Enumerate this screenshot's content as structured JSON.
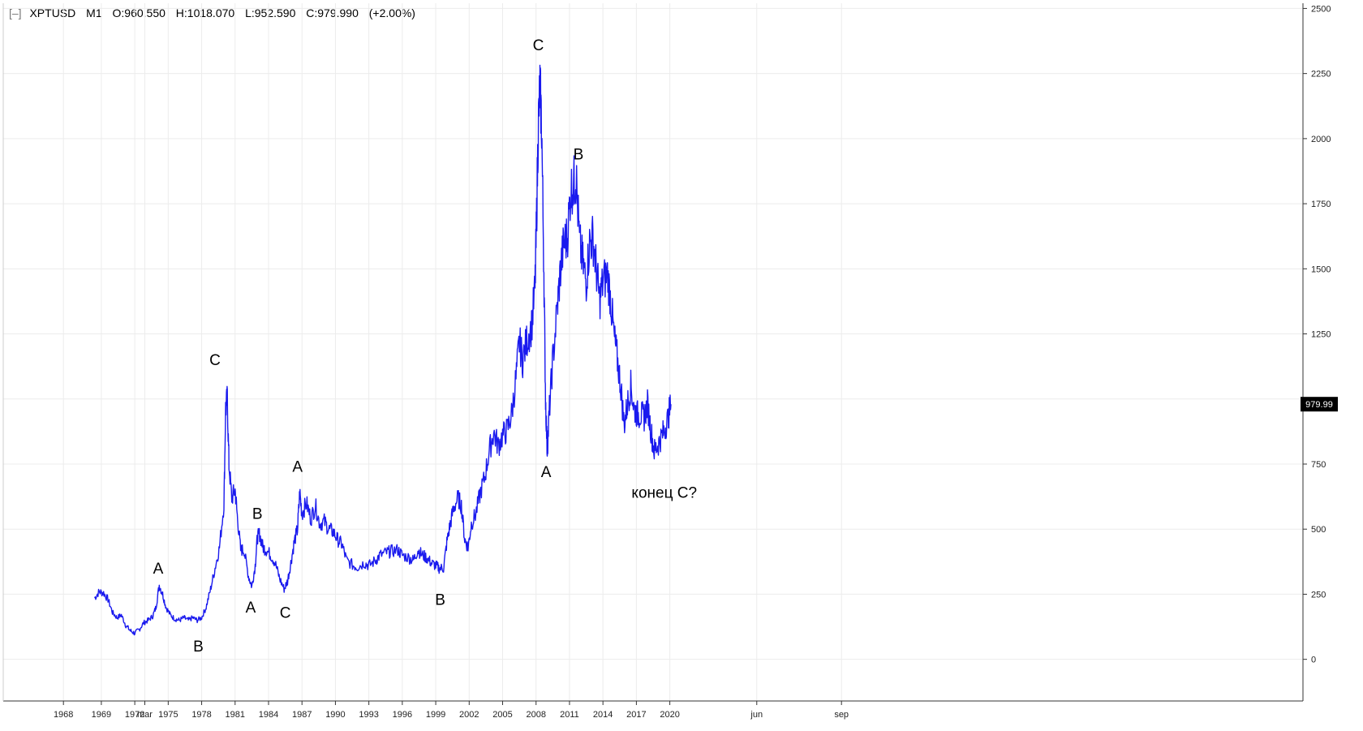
{
  "header": {
    "collapse_icon": "[–]",
    "symbol": "XPTUSD",
    "timeframe": "M1",
    "open": "O:960.550",
    "high": "H:1018.070",
    "low": "L:952.590",
    "close": "C:979.990",
    "change": "(+2.00%)"
  },
  "colors": {
    "series": "#1a1aee",
    "grid": "#ececec",
    "axis": "#333333",
    "price_tag_bg": "#000000"
  },
  "chart_data": {
    "type": "line",
    "ylim": [
      -160,
      2520
    ],
    "y_ticks": [
      0,
      250,
      500,
      750,
      1000,
      1250,
      1500,
      1750,
      2000,
      2250,
      2500
    ],
    "y_tick_labels": [
      "0",
      "250",
      "500",
      "750",
      "",
      "1250",
      "1500",
      "1750",
      "2000",
      "2250",
      "2500"
    ],
    "xlim": [
      1960.2,
      2076.8
    ],
    "x_ticks": [
      {
        "t": 1965.6,
        "label": "1968"
      },
      {
        "t": 1972.9,
        "label": "mar"
      },
      {
        "t": 1969.0,
        "label": "1969"
      },
      {
        "t": 1972.0,
        "label": "1972"
      },
      {
        "t": 1975.0,
        "label": "1975"
      },
      {
        "t": 1978.0,
        "label": "1978"
      },
      {
        "t": 1981.0,
        "label": "1981"
      },
      {
        "t": 1984.0,
        "label": "1984"
      },
      {
        "t": 1987.0,
        "label": "1987"
      },
      {
        "t": 1990.0,
        "label": "1990"
      },
      {
        "t": 1993.0,
        "label": "1993"
      },
      {
        "t": 1996.0,
        "label": "1996"
      },
      {
        "t": 1999.0,
        "label": "1999"
      },
      {
        "t": 2002.0,
        "label": "2002"
      },
      {
        "t": 2005.0,
        "label": "2005"
      },
      {
        "t": 2008.0,
        "label": "2008"
      },
      {
        "t": 2011.0,
        "label": "2011"
      },
      {
        "t": 2014.0,
        "label": "2014"
      },
      {
        "t": 2017.0,
        "label": "2017"
      },
      {
        "t": 2020.0,
        "label": "2020"
      },
      {
        "t": 2027.8,
        "label": "jun"
      },
      {
        "t": 2035.4,
        "label": "sep"
      }
    ],
    "series": [
      {
        "points": [
          [
            1968.4,
            235
          ],
          [
            1968.8,
            260
          ],
          [
            1969.2,
            255
          ],
          [
            1969.6,
            230
          ],
          [
            1970.0,
            180
          ],
          [
            1970.4,
            160
          ],
          [
            1970.8,
            170
          ],
          [
            1971.2,
            130
          ],
          [
            1971.6,
            110
          ],
          [
            1972.0,
            100
          ],
          [
            1972.4,
            115
          ],
          [
            1972.8,
            140
          ],
          [
            1973.2,
            150
          ],
          [
            1973.6,
            165
          ],
          [
            1973.9,
            200
          ],
          [
            1974.2,
            285
          ],
          [
            1974.5,
            250
          ],
          [
            1974.8,
            200
          ],
          [
            1975.2,
            170
          ],
          [
            1975.6,
            155
          ],
          [
            1976.0,
            150
          ],
          [
            1976.4,
            160
          ],
          [
            1976.8,
            150
          ],
          [
            1977.2,
            160
          ],
          [
            1977.6,
            150
          ],
          [
            1978.0,
            160
          ],
          [
            1978.4,
            200
          ],
          [
            1978.8,
            270
          ],
          [
            1979.2,
            350
          ],
          [
            1979.6,
            430
          ],
          [
            1980.0,
            600
          ],
          [
            1980.15,
            960
          ],
          [
            1980.3,
            1000
          ],
          [
            1980.45,
            750
          ],
          [
            1980.7,
            620
          ],
          [
            1981.0,
            650
          ],
          [
            1981.2,
            550
          ],
          [
            1981.5,
            420
          ],
          [
            1981.8,
            420
          ],
          [
            1982.2,
            320
          ],
          [
            1982.5,
            280
          ],
          [
            1982.8,
            360
          ],
          [
            1983.0,
            470
          ],
          [
            1983.2,
            480
          ],
          [
            1983.5,
            430
          ],
          [
            1983.8,
            420
          ],
          [
            1984.2,
            400
          ],
          [
            1984.6,
            370
          ],
          [
            1985.0,
            310
          ],
          [
            1985.4,
            270
          ],
          [
            1985.7,
            300
          ],
          [
            1986.0,
            370
          ],
          [
            1986.3,
            450
          ],
          [
            1986.6,
            500
          ],
          [
            1986.8,
            640
          ],
          [
            1987.0,
            560
          ],
          [
            1987.4,
            600
          ],
          [
            1987.8,
            540
          ],
          [
            1988.2,
            590
          ],
          [
            1988.6,
            520
          ],
          [
            1989.0,
            530
          ],
          [
            1989.4,
            500
          ],
          [
            1989.8,
            490
          ],
          [
            1990.2,
            460
          ],
          [
            1990.6,
            440
          ],
          [
            1991.0,
            380
          ],
          [
            1991.6,
            360
          ],
          [
            1992.0,
            355
          ],
          [
            1992.6,
            370
          ],
          [
            1993.0,
            360
          ],
          [
            1993.6,
            380
          ],
          [
            1994.0,
            400
          ],
          [
            1994.6,
            410
          ],
          [
            1995.0,
            415
          ],
          [
            1995.6,
            420
          ],
          [
            1996.0,
            400
          ],
          [
            1996.6,
            390
          ],
          [
            1997.0,
            380
          ],
          [
            1997.4,
            420
          ],
          [
            1997.8,
            400
          ],
          [
            1998.2,
            390
          ],
          [
            1998.6,
            370
          ],
          [
            1999.0,
            360
          ],
          [
            1999.3,
            350
          ],
          [
            1999.7,
            350
          ],
          [
            2000.0,
            450
          ],
          [
            2000.3,
            520
          ],
          [
            2000.6,
            580
          ],
          [
            2001.0,
            620
          ],
          [
            2001.3,
            590
          ],
          [
            2001.6,
            460
          ],
          [
            2001.9,
            430
          ],
          [
            2002.2,
            520
          ],
          [
            2002.6,
            560
          ],
          [
            2003.0,
            640
          ],
          [
            2003.4,
            700
          ],
          [
            2003.8,
            800
          ],
          [
            2004.2,
            870
          ],
          [
            2004.6,
            820
          ],
          [
            2005.0,
            860
          ],
          [
            2005.4,
            880
          ],
          [
            2005.8,
            940
          ],
          [
            2006.2,
            1080
          ],
          [
            2006.5,
            1220
          ],
          [
            2006.8,
            1150
          ],
          [
            2007.2,
            1230
          ],
          [
            2007.6,
            1280
          ],
          [
            2007.9,
            1420
          ],
          [
            2008.05,
            1700
          ],
          [
            2008.2,
            2050
          ],
          [
            2008.35,
            2200
          ],
          [
            2008.5,
            2050
          ],
          [
            2008.7,
            1500
          ],
          [
            2008.85,
            1000
          ],
          [
            2009.0,
            800
          ],
          [
            2009.2,
            960
          ],
          [
            2009.5,
            1150
          ],
          [
            2009.9,
            1350
          ],
          [
            2010.2,
            1500
          ],
          [
            2010.5,
            1600
          ],
          [
            2010.8,
            1620
          ],
          [
            2011.1,
            1800
          ],
          [
            2011.4,
            1830
          ],
          [
            2011.6,
            1850
          ],
          [
            2011.9,
            1600
          ],
          [
            2012.2,
            1520
          ],
          [
            2012.5,
            1450
          ],
          [
            2012.8,
            1600
          ],
          [
            2013.1,
            1620
          ],
          [
            2013.4,
            1500
          ],
          [
            2013.7,
            1380
          ],
          [
            2014.0,
            1450
          ],
          [
            2014.4,
            1480
          ],
          [
            2014.7,
            1380
          ],
          [
            2015.0,
            1240
          ],
          [
            2015.3,
            1150
          ],
          [
            2015.6,
            1050
          ],
          [
            2015.9,
            900
          ],
          [
            2016.2,
            980
          ],
          [
            2016.5,
            1050
          ],
          [
            2016.8,
            960
          ],
          [
            2017.1,
            940
          ],
          [
            2017.4,
            940
          ],
          [
            2017.7,
            930
          ],
          [
            2018.0,
            980
          ],
          [
            2018.3,
            880
          ],
          [
            2018.6,
            800
          ],
          [
            2018.9,
            820
          ],
          [
            2019.2,
            850
          ],
          [
            2019.5,
            880
          ],
          [
            2019.8,
            920
          ],
          [
            2020.1,
            980
          ]
        ]
      }
    ],
    "annotations": [
      {
        "t": 1974.1,
        "v": 330,
        "text": "A"
      },
      {
        "t": 1977.7,
        "v": 30,
        "text": "B"
      },
      {
        "t": 1979.2,
        "v": 1130,
        "text": "C"
      },
      {
        "t": 1982.4,
        "v": 180,
        "text": "A"
      },
      {
        "t": 1983.0,
        "v": 540,
        "text": "B"
      },
      {
        "t": 1985.5,
        "v": 160,
        "text": "C"
      },
      {
        "t": 1986.6,
        "v": 720,
        "text": "A"
      },
      {
        "t": 1999.4,
        "v": 210,
        "text": "B"
      },
      {
        "t": 2008.2,
        "v": 2340,
        "text": "C"
      },
      {
        "t": 2008.9,
        "v": 700,
        "text": "A"
      },
      {
        "t": 2011.8,
        "v": 1920,
        "text": "B"
      },
      {
        "t": 2019.5,
        "v": 620,
        "text": "конец C?"
      }
    ],
    "last_price_label": "979.99",
    "last_price": 979.99,
    "grid": true
  }
}
